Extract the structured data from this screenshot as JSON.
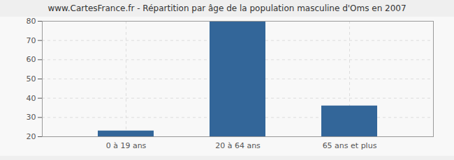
{
  "chart_data": {
    "type": "bar",
    "title": "www.CartesFrance.fr - Répartition par âge de la population masculine d'Oms en 2007",
    "categories": [
      "0 à 19 ans",
      "20 à 64 ans",
      "65 ans et plus"
    ],
    "values": [
      23,
      80,
      36
    ],
    "color": "#336699",
    "ylim": [
      20,
      80
    ],
    "yticks": [
      20,
      30,
      40,
      50,
      60,
      70,
      80
    ],
    "grid": true
  }
}
